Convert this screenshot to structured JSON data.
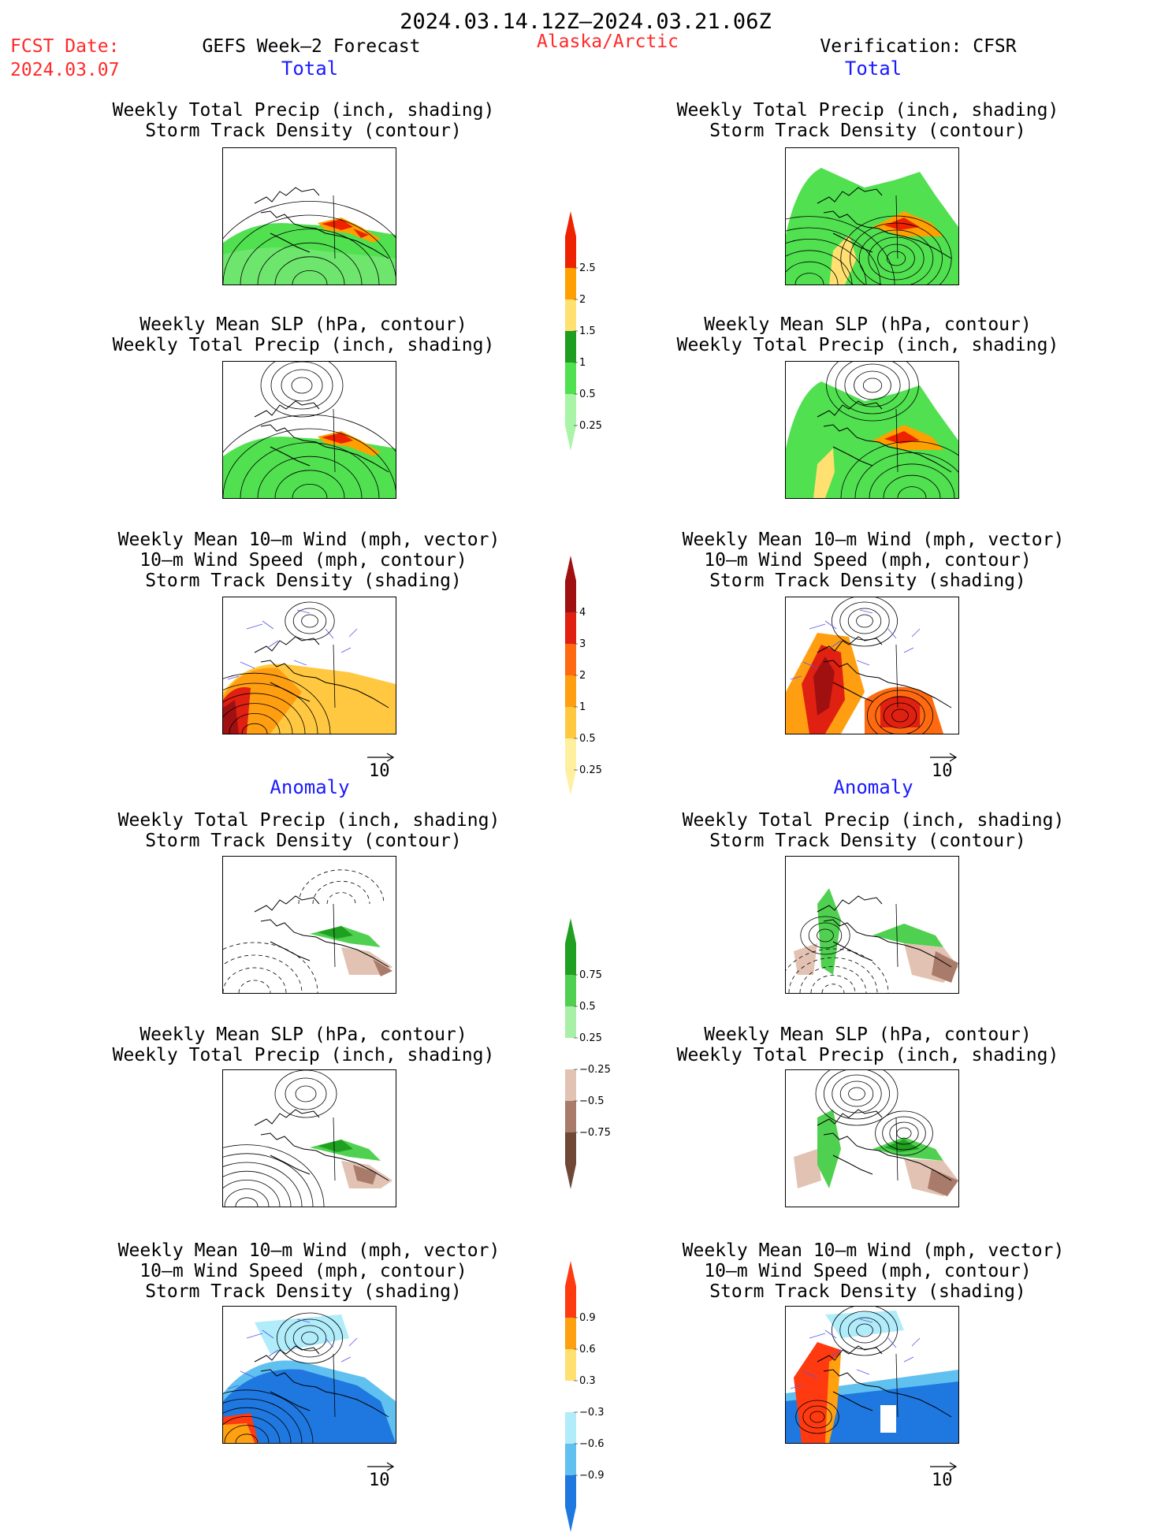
{
  "header": {
    "period": "2024.03.14.12Z–2024.03.21.06Z",
    "fcst_label": "FCST Date:",
    "fcst_date": "2024.03.07",
    "model": "GEFS Week–2 Forecast",
    "region": "Alaska/Arctic",
    "verification": "Verification: CFSR"
  },
  "sections": {
    "total": "Total",
    "anomaly": "Anomaly"
  },
  "titles": {
    "precip_track": [
      "Weekly Total Precip (inch, shading)",
      "Storm Track Density (contour)"
    ],
    "slp_precip": [
      "Weekly Mean SLP (hPa, contour)",
      "Weekly Total Precip (inch, shading)"
    ],
    "wind_track": [
      "Weekly Mean 10–m Wind (mph, vector)",
      "10–m Wind Speed (mph, contour)",
      "Storm Track Density (shading)"
    ]
  },
  "vector_ref": "10",
  "colorbars": {
    "precip_total": {
      "labels": [
        "2.5",
        "2",
        "1.5",
        "1",
        "0.5",
        "0.25"
      ],
      "colors": [
        "#ee2200",
        "#ffa000",
        "#ffe070",
        "#1e9e1e",
        "#50e050",
        "#a8f5a8"
      ]
    },
    "track_total": {
      "labels": [
        "4",
        "3",
        "2",
        "1",
        "0.5",
        "0.25"
      ],
      "colors": [
        "#a01010",
        "#e02010",
        "#ff6a10",
        "#ff9e10",
        "#ffc840",
        "#fff0a0"
      ]
    },
    "precip_anom": {
      "labels": [
        "0.75",
        "0.5",
        "0.25",
        "−0.25",
        "−0.5",
        "−0.75"
      ],
      "colors": [
        "#20a020",
        "#50d050",
        "#a8f0a8",
        "#ffffff",
        "#e2c2b2",
        "#a87b6b",
        "#704838"
      ]
    },
    "track_anom": {
      "labels": [
        "0.9",
        "0.6",
        "0.3",
        "−0.3",
        "−0.6",
        "−0.9"
      ],
      "colors": [
        "#ff3a10",
        "#ffa010",
        "#ffe070",
        "#ffffff",
        "#b0ecfa",
        "#60c0f0",
        "#1e78e0"
      ]
    }
  }
}
